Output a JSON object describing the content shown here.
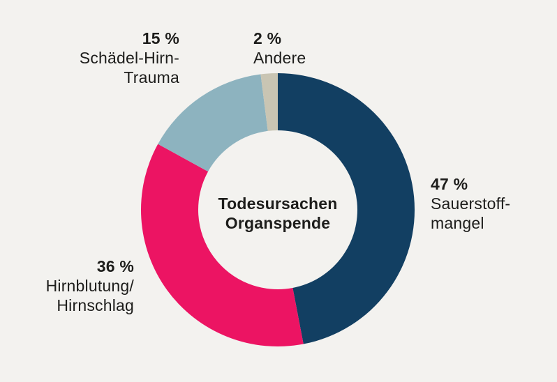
{
  "page": {
    "background_color": "#f3f2ef",
    "text_color": "#1d1d1b"
  },
  "chart_data": {
    "type": "pie",
    "subtype": "donut",
    "title": "Todesursachen\nOrganspende",
    "start_angle_deg": 0,
    "direction": "clockwise",
    "total": 100,
    "legend_position": "around",
    "segments": [
      {
        "name": "Sauerstoffmangel",
        "pct_label": "47 %",
        "label": "Sauerstoff-\nmangel",
        "value": 47,
        "color": "#123f62"
      },
      {
        "name": "Hirnblutung/Hirnschlag",
        "pct_label": "36 %",
        "label": "Hirnblutung/\nHirnschlag",
        "value": 36,
        "color": "#ec1463"
      },
      {
        "name": "Schädel-Hirn-Trauma",
        "pct_label": "15 %",
        "label": "Schädel-Hirn-\nTrauma",
        "value": 15,
        "color": "#8db3bf"
      },
      {
        "name": "Andere",
        "pct_label": "2 %",
        "label": "Andere",
        "value": 2,
        "color": "#c9c5b3"
      }
    ]
  }
}
